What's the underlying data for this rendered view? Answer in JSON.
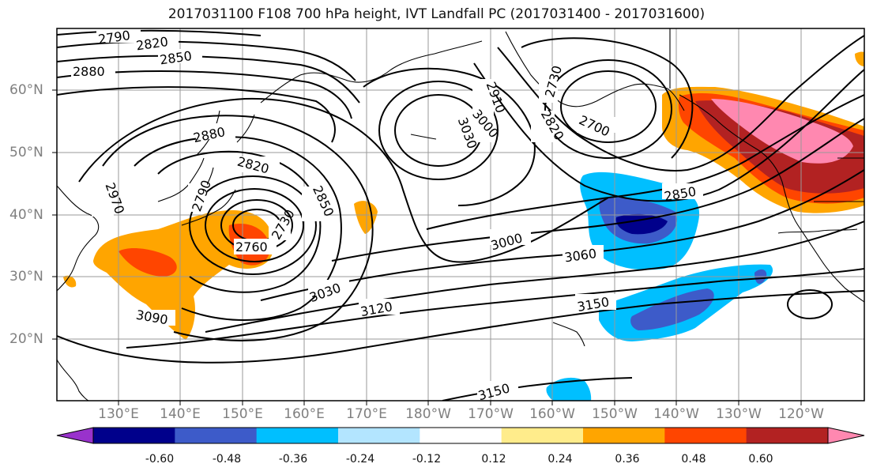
{
  "title": "2017031100 F108 700 hPa height, IVT Landfall PC (2017031400 - 2017031600)",
  "lat_labels": [
    "60°N",
    "50°N",
    "40°N",
    "30°N",
    "20°N"
  ],
  "lon_labels": [
    "130°E",
    "140°E",
    "150°E",
    "160°E",
    "170°E",
    "180°W",
    "170°W",
    "160°W",
    "150°W",
    "140°W",
    "130°W",
    "120°W"
  ],
  "contour_labels": [
    "2790",
    "2820",
    "2850",
    "2880",
    "2910",
    "3000",
    "3030",
    "2730",
    "2820",
    "2700",
    "2880",
    "2820",
    "2850",
    "2790",
    "2760",
    "2730",
    "2970",
    "3000",
    "3060",
    "3030",
    "3120",
    "3150",
    "3090",
    "3150",
    "2850"
  ],
  "colorbar": {
    "ticks": [
      "-0.60",
      "-0.48",
      "-0.36",
      "-0.24",
      "-0.12",
      "0.12",
      "0.24",
      "0.36",
      "0.48",
      "0.60"
    ],
    "colors": [
      "#9932cc",
      "#00008b",
      "#3d5bc9",
      "#00bfff",
      "#b3e5ff",
      "#ffffff",
      "#ffec8b",
      "#ffa500",
      "#ff4500",
      "#b22222",
      "#ff88b0"
    ]
  },
  "colors": {
    "contour": "#000000",
    "coast": "#000000",
    "grid": "#999999",
    "axis_label": "#7f7f7f"
  }
}
